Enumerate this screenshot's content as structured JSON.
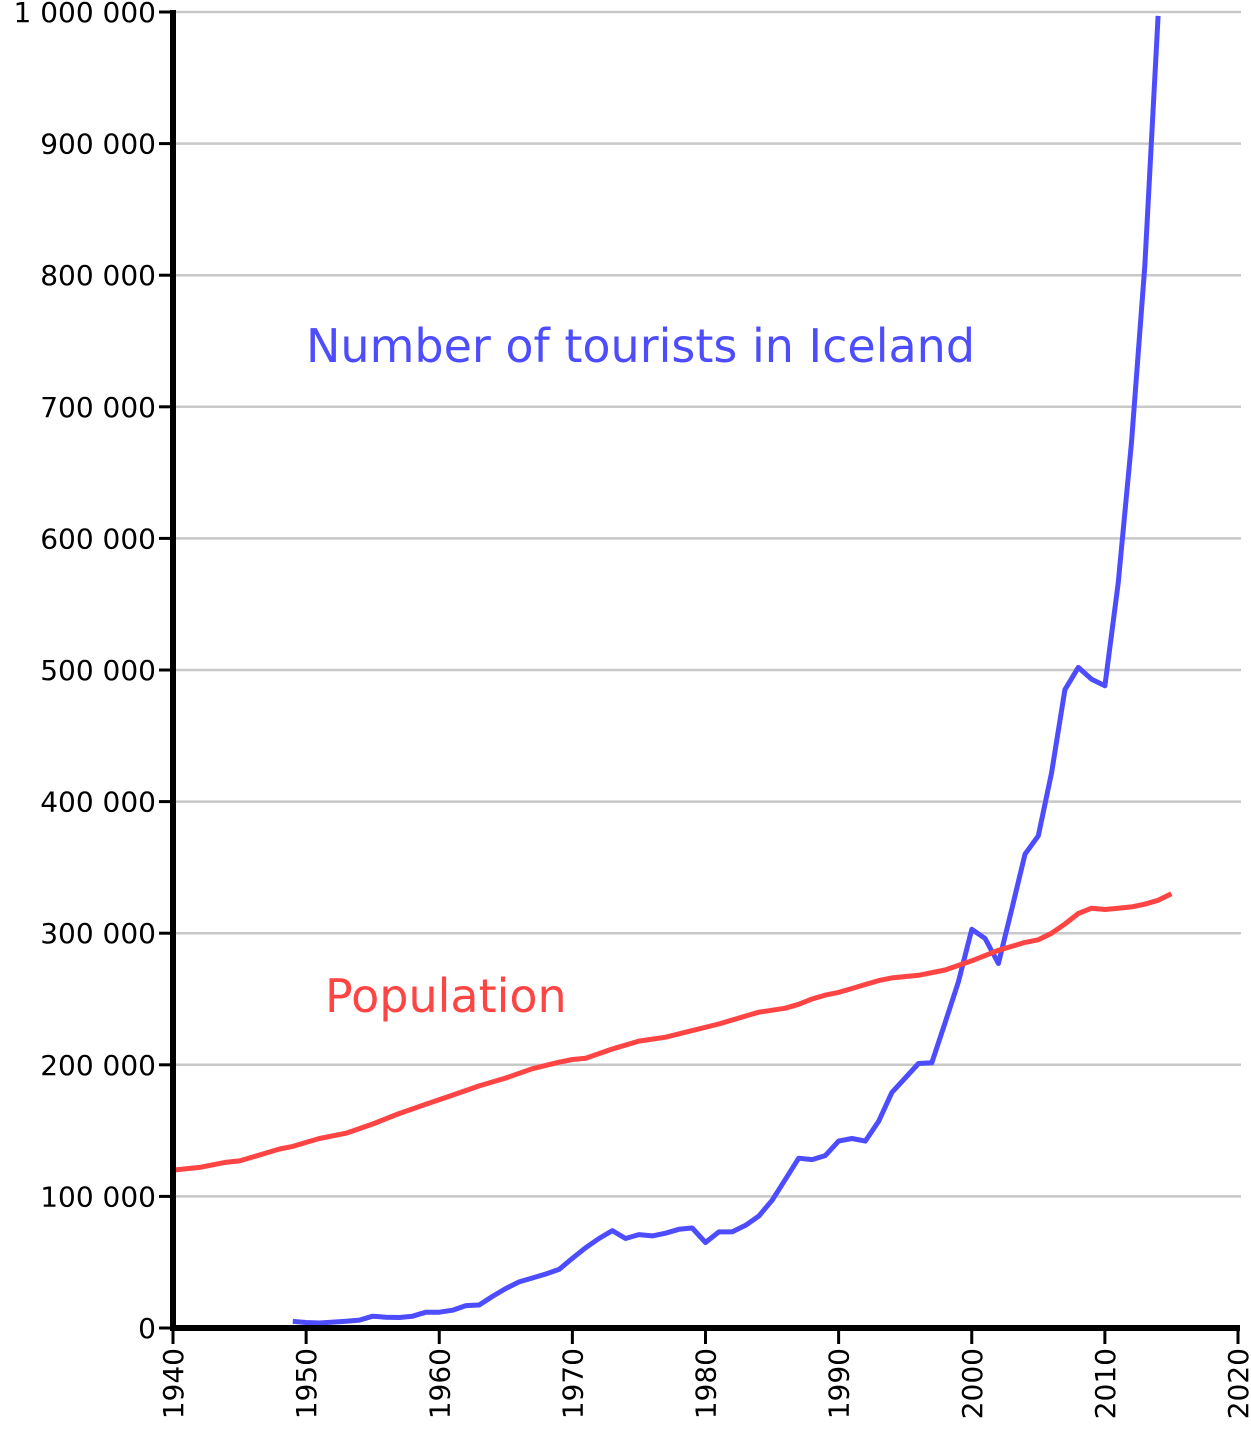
{
  "chart_data": {
    "type": "line",
    "title": "",
    "xlabel": "",
    "ylabel": "",
    "xlim": [
      1940,
      2020
    ],
    "ylim": [
      0,
      1000000
    ],
    "grid": true,
    "x_ticks": [
      1940,
      1950,
      1960,
      1970,
      1980,
      1990,
      2000,
      2010,
      2020
    ],
    "x_tick_labels": [
      "1940",
      "1950",
      "1960",
      "1970",
      "1980",
      "1990",
      "2000",
      "2010",
      "2020"
    ],
    "y_ticks": [
      0,
      100000,
      200000,
      300000,
      400000,
      500000,
      600000,
      700000,
      800000,
      900000,
      1000000
    ],
    "y_tick_labels": [
      "0",
      "100 000",
      "200 000",
      "300 000",
      "400 000",
      "500 000",
      "600 000",
      "700 000",
      "800 000",
      "900 000",
      "1 000 000"
    ],
    "annotations": [
      {
        "text": "Number of tourists in Iceland",
        "series": "tourists"
      },
      {
        "text": "Population",
        "series": "population"
      }
    ],
    "series": [
      {
        "id": "tourists",
        "color": "#4d4dff",
        "x": [
          1949,
          1950,
          1951,
          1952,
          1953,
          1954,
          1955,
          1956,
          1957,
          1958,
          1959,
          1960,
          1961,
          1962,
          1963,
          1964,
          1965,
          1966,
          1967,
          1968,
          1969,
          1970,
          1971,
          1972,
          1973,
          1974,
          1975,
          1976,
          1977,
          1978,
          1979,
          1980,
          1981,
          1982,
          1983,
          1984,
          1985,
          1986,
          1987,
          1988,
          1989,
          1990,
          1991,
          1992,
          1993,
          1994,
          1995,
          1996,
          1997,
          1998,
          1999,
          2000,
          2001,
          2002,
          2003,
          2004,
          2005,
          2006,
          2007,
          2008,
          2009,
          2010,
          2011,
          2012,
          2013,
          2014
        ],
        "values": [
          5000,
          4200,
          3800,
          4500,
          5200,
          6000,
          9000,
          8200,
          8000,
          9000,
          12000,
          12000,
          13500,
          17000,
          17500,
          24000,
          30000,
          35000,
          38000,
          41000,
          44500,
          53000,
          61000,
          68000,
          74000,
          68000,
          71000,
          70000,
          72000,
          75000,
          76000,
          65000,
          73000,
          73000,
          78000,
          85000,
          97000,
          113000,
          129000,
          128000,
          131000,
          142000,
          144000,
          142000,
          157000,
          179000,
          190000,
          201000,
          201500,
          232000,
          263000,
          303000,
          296000,
          277000,
          318000,
          360000,
          374000,
          422000,
          485000,
          502000,
          493000,
          488000,
          566000,
          673000,
          807000,
          997000
        ]
      },
      {
        "id": "population",
        "color": "#ff4444",
        "x": [
          1940,
          1942,
          1943,
          1944,
          1945,
          1947,
          1948,
          1949,
          1950,
          1951,
          1953,
          1955,
          1957,
          1959,
          1961,
          1963,
          1965,
          1967,
          1969,
          1970,
          1971,
          1973,
          1975,
          1977,
          1979,
          1981,
          1983,
          1984,
          1986,
          1987,
          1988,
          1989,
          1990,
          1991,
          1992,
          1993,
          1994,
          1996,
          1998,
          2000,
          2001,
          2002,
          2003,
          2004,
          2005,
          2006,
          2007,
          2008,
          2009,
          2010,
          2011,
          2012,
          2013,
          2014,
          2015
        ],
        "values": [
          120000,
          122000,
          124000,
          126000,
          127000,
          133000,
          136000,
          138000,
          141000,
          144000,
          148000,
          155000,
          163000,
          170000,
          177000,
          184000,
          190000,
          197000,
          202000,
          204000,
          205000,
          212000,
          218000,
          221000,
          226000,
          231000,
          237000,
          240000,
          243000,
          246000,
          250000,
          253000,
          255000,
          258000,
          261000,
          264000,
          266000,
          268000,
          272000,
          279000,
          283000,
          287000,
          290000,
          293000,
          295000,
          300000,
          307000,
          315000,
          319000,
          318000,
          319000,
          320000,
          322000,
          325000,
          330000
        ]
      }
    ]
  }
}
